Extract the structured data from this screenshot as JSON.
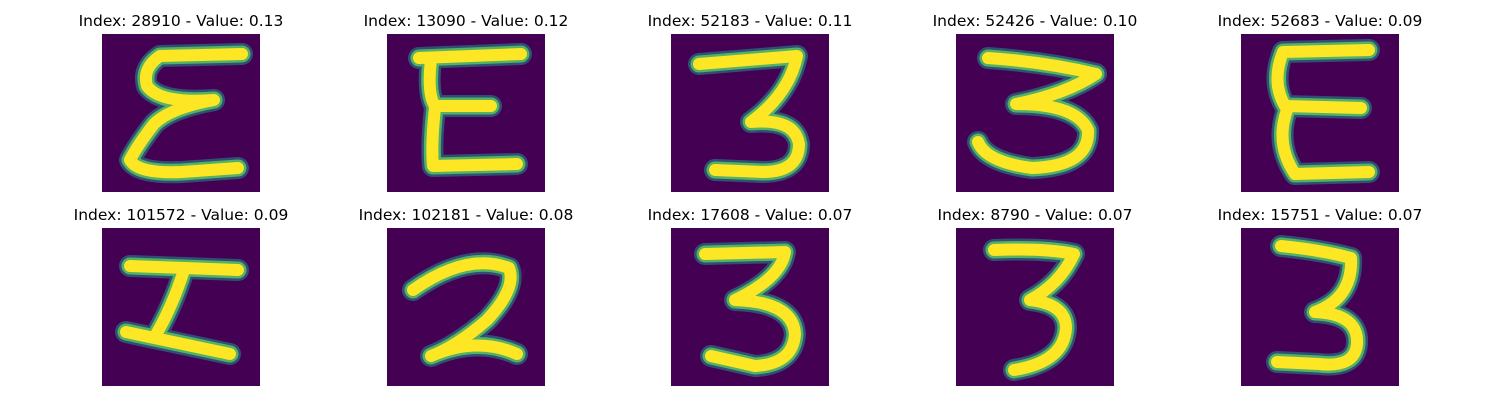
{
  "colors": {
    "background": "#440154",
    "stroke_core": "#fde725",
    "stroke_mid": "#5ec962",
    "stroke_halo": "#21918c"
  },
  "panels": [
    {
      "title": "Index: 28910 - Value: 0.13",
      "glyph": "E"
    },
    {
      "title": "Index: 13090 - Value: 0.12",
      "glyph": "E"
    },
    {
      "title": "Index: 52183 - Value: 0.11",
      "glyph": "3"
    },
    {
      "title": "Index: 52426 - Value: 0.10",
      "glyph": "3"
    },
    {
      "title": "Index: 52683 - Value: 0.09",
      "glyph": "E"
    },
    {
      "title": "Index: 101572 - Value: 0.09",
      "glyph": "I"
    },
    {
      "title": "Index: 102181 - Value: 0.08",
      "glyph": "2"
    },
    {
      "title": "Index: 17608 - Value: 0.07",
      "glyph": "3"
    },
    {
      "title": "Index: 8790 - Value: 0.07",
      "glyph": "3"
    },
    {
      "title": "Index: 15751 - Value: 0.07",
      "glyph": "3"
    }
  ]
}
